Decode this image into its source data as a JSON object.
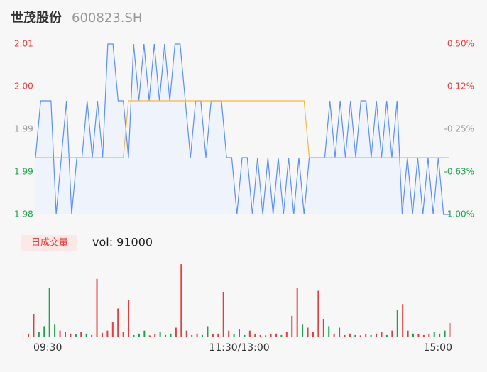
{
  "chart_data": [
    {
      "type": "line",
      "title": "世茂股份",
      "subtitle": "600823.SH",
      "x": [
        0,
        3,
        6,
        9,
        12,
        15,
        18,
        21,
        24,
        27,
        30,
        33,
        36,
        39,
        42,
        45,
        48,
        51,
        54,
        57,
        60,
        63,
        66,
        69,
        72,
        75,
        78,
        81,
        84,
        87,
        90,
        93,
        96,
        99,
        102,
        105,
        108,
        111,
        114,
        117,
        120,
        123,
        126,
        129,
        132,
        135,
        138,
        141,
        144,
        147,
        150,
        153,
        156,
        159,
        162,
        165,
        168,
        171,
        174,
        177,
        180,
        183,
        186,
        189,
        192,
        195,
        198,
        201,
        204,
        207,
        210,
        213,
        216,
        219,
        222,
        225,
        228,
        231,
        234,
        237,
        240
      ],
      "xlim": [
        0,
        240
      ],
      "ylim": [
        1.98,
        2.01
      ],
      "yticks": [
        {
          "value": 1.98,
          "label": "1.98"
        },
        {
          "value": 1.9875,
          "label": "1.99"
        },
        {
          "value": 1.995,
          "label": "1.99"
        },
        {
          "value": 2.0025,
          "label": "2.00"
        },
        {
          "value": 2.01,
          "label": "2.01"
        }
      ],
      "y2lim": [
        -1,
        0.5
      ],
      "y2ticks": [
        {
          "value": -1,
          "label": "-1.00%"
        },
        {
          "value": -0.625,
          "label": "-0.63%"
        },
        {
          "value": -0.25,
          "label": "-0.25%"
        },
        {
          "value": 0.125,
          "label": "0.12%"
        },
        {
          "value": 0.5,
          "label": "0.50%"
        }
      ],
      "tick_colors": [
        "#1aa34a",
        "#1aa34a",
        "#999999",
        "#e83b3b",
        "#e83b3b"
      ],
      "fill_color": "#eef3fc",
      "series": [
        {
          "color": "#5b8ff9",
          "values": [
            1.99,
            2.0,
            2.0,
            2.0,
            1.98,
            1.99,
            2.0,
            1.98,
            1.99,
            1.99,
            2.0,
            1.99,
            2.0,
            1.99,
            2.01,
            2.01,
            2.0,
            2.0,
            1.99,
            2.01,
            2.0,
            2.01,
            2.0,
            2.01,
            2.0,
            2.01,
            2.0,
            2.01,
            2.01,
            2.0,
            1.99,
            2.0,
            2.0,
            1.99,
            2.0,
            2.0,
            2.0,
            1.99,
            1.99,
            1.98,
            1.99,
            1.99,
            1.98,
            1.99,
            1.98,
            1.99,
            1.98,
            1.99,
            1.98,
            1.99,
            1.98,
            1.99,
            1.98,
            1.99,
            1.99,
            1.99,
            1.99,
            2.0,
            1.99,
            2.0,
            1.99,
            2.0,
            1.99,
            2.0,
            2.0,
            1.99,
            2.0,
            1.99,
            2.0,
            1.99,
            2.0,
            1.98,
            1.99,
            1.98,
            1.99,
            1.98,
            1.99,
            1.98,
            1.99,
            1.98,
            1.98
          ]
        },
        {
          "color": "#f5b942",
          "values": [
            1.99,
            1.99,
            1.99,
            1.99,
            1.99,
            1.99,
            1.99,
            1.99,
            1.99,
            1.99,
            1.99,
            1.99,
            1.99,
            1.99,
            1.99,
            1.99,
            1.99,
            1.99,
            2.0,
            2.0,
            2.0,
            2.0,
            2.0,
            2.0,
            2.0,
            2.0,
            2.0,
            2.0,
            2.0,
            2.0,
            2.0,
            2.0,
            2.0,
            2.0,
            2.0,
            2.0,
            2.0,
            2.0,
            2.0,
            2.0,
            2.0,
            2.0,
            2.0,
            2.0,
            2.0,
            2.0,
            2.0,
            2.0,
            2.0,
            2.0,
            2.0,
            2.0,
            2.0,
            1.99,
            1.99,
            1.99,
            1.99,
            1.99,
            1.99,
            1.99,
            1.99,
            1.99,
            1.99,
            1.99,
            1.99,
            1.99,
            1.99,
            1.99,
            1.99,
            1.99,
            1.99,
            1.99,
            1.99,
            1.99,
            1.99,
            1.99,
            1.99,
            1.99,
            1.99,
            1.99,
            1.99
          ]
        }
      ]
    },
    {
      "type": "bar",
      "title": "日成交量",
      "annotation": "vol: 91000",
      "x": [
        0,
        3,
        6,
        9,
        12,
        15,
        18,
        21,
        24,
        27,
        30,
        33,
        36,
        39,
        42,
        45,
        48,
        51,
        54,
        57,
        60,
        63,
        66,
        69,
        72,
        75,
        78,
        81,
        84,
        87,
        90,
        93,
        96,
        99,
        102,
        105,
        108,
        111,
        114,
        117,
        120,
        123,
        126,
        129,
        132,
        135,
        138,
        141,
        144,
        147,
        150,
        153,
        156,
        159,
        162,
        165,
        168,
        171,
        174,
        177,
        180,
        183,
        186,
        189,
        192,
        195,
        198,
        201,
        204,
        207,
        210,
        213,
        216,
        219,
        222,
        225,
        228,
        231,
        234,
        237,
        240
      ],
      "xlim": [
        0,
        240
      ],
      "xticks": [
        {
          "value": 0,
          "label": "09:30"
        },
        {
          "value": 120,
          "label": "11:30/13:00"
        },
        {
          "value": 240,
          "label": "15:00"
        }
      ],
      "ylim": [
        0,
        500000
      ],
      "values": [
        20000,
        150000,
        30000,
        70000,
        330000,
        80000,
        40000,
        30000,
        20000,
        15000,
        30000,
        20000,
        10000,
        390000,
        25000,
        40000,
        100000,
        190000,
        30000,
        250000,
        10000,
        20000,
        40000,
        8000,
        15000,
        30000,
        10000,
        20000,
        60000,
        490000,
        40000,
        10000,
        20000,
        10000,
        70000,
        15000,
        20000,
        300000,
        40000,
        20000,
        50000,
        10000,
        40000,
        15000,
        10000,
        8000,
        15000,
        20000,
        10000,
        30000,
        140000,
        330000,
        80000,
        60000,
        30000,
        310000,
        120000,
        70000,
        20000,
        60000,
        10000,
        20000,
        10000,
        8000,
        15000,
        10000,
        20000,
        30000,
        10000,
        40000,
        180000,
        220000,
        40000,
        20000,
        15000,
        10000,
        20000,
        30000,
        20000,
        40000,
        91000
      ],
      "colors": [
        "#e83b3b",
        "#e83b3b",
        "#1aa34a",
        "#1aa34a",
        "#1aa34a",
        "#1aa34a",
        "#e83b3b",
        "#1aa34a",
        "#e83b3b",
        "#1aa34a",
        "#e83b3b",
        "#1aa34a",
        "#e83b3b",
        "#e83b3b",
        "#e83b3b",
        "#e83b3b",
        "#e83b3b",
        "#e83b3b",
        "#e83b3b",
        "#e83b3b",
        "#1aa34a",
        "#1aa34a",
        "#1aa34a",
        "#e83b3b",
        "#e83b3b",
        "#1aa34a",
        "#e83b3b",
        "#1aa34a",
        "#e83b3b",
        "#e83b3b",
        "#e83b3b",
        "#1aa34a",
        "#e83b3b",
        "#1aa34a",
        "#1aa34a",
        "#e83b3b",
        "#e83b3b",
        "#e83b3b",
        "#e83b3b",
        "#1aa34a",
        "#e83b3b",
        "#1aa34a",
        "#e83b3b",
        "#e83b3b",
        "#e83b3b",
        "#1aa34a",
        "#e83b3b",
        "#e83b3b",
        "#1aa34a",
        "#e83b3b",
        "#e83b3b",
        "#e83b3b",
        "#1aa34a",
        "#e83b3b",
        "#e83b3b",
        "#e83b3b",
        "#e83b3b",
        "#1aa34a",
        "#e83b3b",
        "#1aa34a",
        "#e83b3b",
        "#e83b3b",
        "#1aa34a",
        "#e83b3b",
        "#e83b3b",
        "#1aa34a",
        "#e83b3b",
        "#e83b3b",
        "#1aa34a",
        "#e83b3b",
        "#1aa34a",
        "#e83b3b",
        "#e83b3b",
        "#1aa34a",
        "#e83b3b",
        "#e83b3b",
        "#e83b3b",
        "#1aa34a",
        "#e83b3b",
        "#1aa34a",
        "#f4a0a0"
      ]
    }
  ]
}
